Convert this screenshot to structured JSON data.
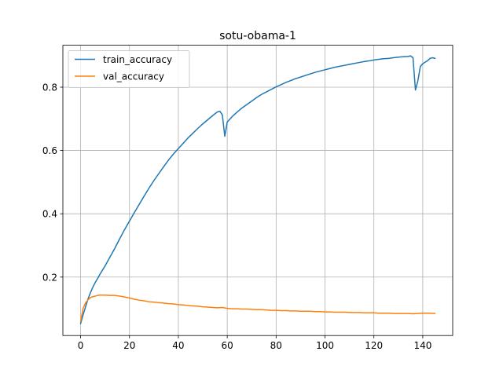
{
  "chart_data": {
    "type": "line",
    "title": "sotu-obama-1",
    "xlabel": "",
    "ylabel": "",
    "xlim": [
      -7.25,
      152.25
    ],
    "ylim": [
      0.0153,
      0.9325
    ],
    "xticks": [
      0,
      20,
      40,
      60,
      80,
      100,
      120,
      140
    ],
    "yticks": [
      0.2,
      0.4,
      0.6,
      0.8
    ],
    "xtick_labels": [
      "0",
      "20",
      "40",
      "60",
      "80",
      "100",
      "120",
      "140"
    ],
    "ytick_labels": [
      "0.2",
      "0.4",
      "0.6",
      "0.8"
    ],
    "grid": true,
    "legend_position": "upper-left",
    "colors": {
      "train_accuracy": "#1f77b4",
      "val_accuracy": "#ff7f0e",
      "grid": "#b0b0b0",
      "axes": "#000000"
    },
    "series": [
      {
        "name": "train_accuracy",
        "x": [
          0,
          1,
          2,
          3,
          4,
          5,
          6,
          7,
          8,
          10,
          12,
          14,
          16,
          18,
          20,
          22,
          24,
          26,
          28,
          30,
          32,
          34,
          36,
          38,
          40,
          42,
          44,
          46,
          48,
          50,
          52,
          54,
          56,
          57,
          58,
          59,
          60,
          62,
          64,
          66,
          68,
          70,
          72,
          74,
          76,
          78,
          80,
          82,
          84,
          86,
          88,
          90,
          92,
          94,
          96,
          98,
          100,
          102,
          104,
          106,
          108,
          110,
          112,
          114,
          116,
          118,
          120,
          122,
          124,
          126,
          128,
          130,
          132,
          134,
          135,
          136,
          137,
          138,
          139,
          140,
          141,
          142,
          143,
          144,
          145
        ],
        "y": [
          0.053,
          0.08,
          0.105,
          0.13,
          0.15,
          0.168,
          0.183,
          0.196,
          0.21,
          0.235,
          0.263,
          0.291,
          0.321,
          0.35,
          0.377,
          0.404,
          0.43,
          0.456,
          0.481,
          0.505,
          0.527,
          0.549,
          0.57,
          0.589,
          0.606,
          0.623,
          0.64,
          0.655,
          0.67,
          0.684,
          0.697,
          0.71,
          0.722,
          0.724,
          0.712,
          0.645,
          0.69,
          0.707,
          0.721,
          0.734,
          0.745,
          0.756,
          0.767,
          0.777,
          0.785,
          0.793,
          0.801,
          0.808,
          0.815,
          0.821,
          0.827,
          0.832,
          0.837,
          0.842,
          0.847,
          0.851,
          0.855,
          0.859,
          0.863,
          0.866,
          0.869,
          0.872,
          0.875,
          0.878,
          0.881,
          0.883,
          0.886,
          0.888,
          0.89,
          0.891,
          0.893,
          0.895,
          0.896,
          0.897,
          0.899,
          0.893,
          0.791,
          0.82,
          0.865,
          0.874,
          0.879,
          0.884,
          0.891,
          0.893,
          0.891
        ]
      },
      {
        "name": "val_accuracy",
        "x": [
          0,
          1,
          2,
          3,
          4,
          5,
          6,
          7,
          8,
          10,
          12,
          14,
          16,
          18,
          20,
          22,
          24,
          26,
          28,
          30,
          32,
          34,
          36,
          38,
          40,
          42,
          44,
          46,
          48,
          50,
          52,
          54,
          56,
          58,
          60,
          62,
          64,
          66,
          68,
          70,
          72,
          74,
          76,
          78,
          80,
          82,
          84,
          86,
          88,
          90,
          92,
          94,
          96,
          98,
          100,
          102,
          104,
          106,
          108,
          110,
          112,
          114,
          116,
          118,
          120,
          122,
          124,
          126,
          128,
          130,
          132,
          134,
          136,
          138,
          140,
          142,
          145
        ],
        "y": [
          0.06,
          0.1,
          0.118,
          0.128,
          0.135,
          0.138,
          0.14,
          0.142,
          0.143,
          0.143,
          0.142,
          0.142,
          0.14,
          0.137,
          0.134,
          0.13,
          0.127,
          0.125,
          0.122,
          0.121,
          0.119,
          0.118,
          0.116,
          0.115,
          0.113,
          0.112,
          0.11,
          0.109,
          0.108,
          0.106,
          0.105,
          0.104,
          0.103,
          0.104,
          0.101,
          0.1,
          0.1,
          0.099,
          0.099,
          0.098,
          0.097,
          0.097,
          0.096,
          0.095,
          0.095,
          0.094,
          0.094,
          0.093,
          0.093,
          0.092,
          0.092,
          0.092,
          0.091,
          0.091,
          0.09,
          0.09,
          0.089,
          0.089,
          0.089,
          0.088,
          0.088,
          0.088,
          0.087,
          0.087,
          0.087,
          0.086,
          0.086,
          0.086,
          0.085,
          0.085,
          0.085,
          0.085,
          0.084,
          0.085,
          0.086,
          0.086,
          0.085
        ]
      }
    ]
  }
}
